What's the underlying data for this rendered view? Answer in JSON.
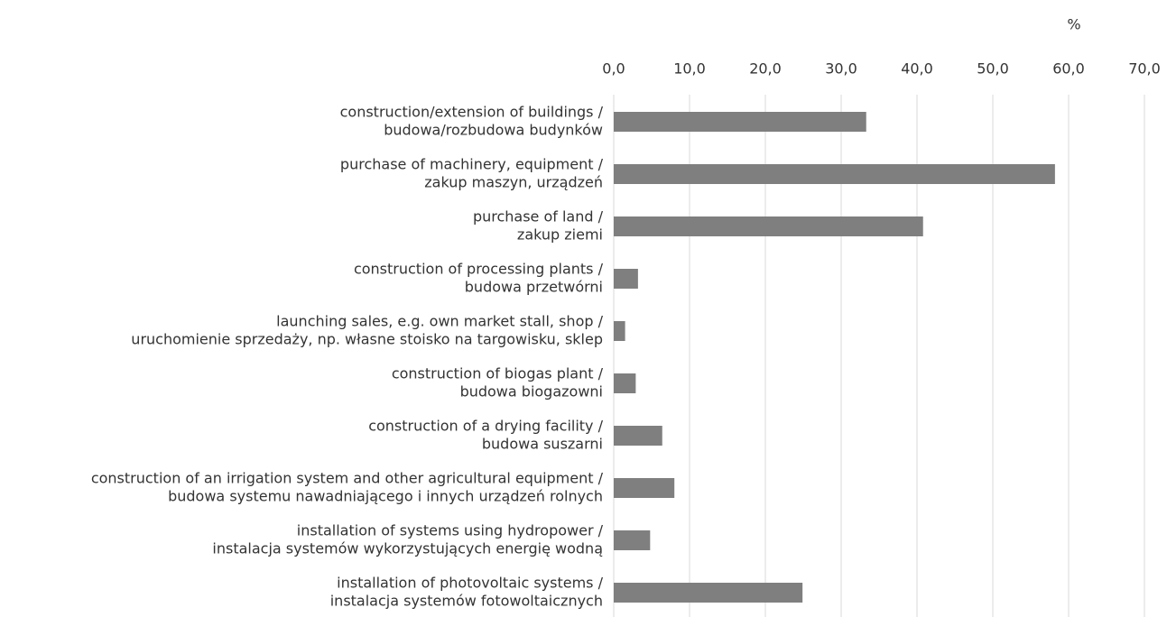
{
  "chart_data": {
    "type": "hbar",
    "unit_label": "%",
    "categories": [
      [
        "construction/extension of buildings /",
        "budowa/rozbudowa budynków"
      ],
      [
        "purchase of machinery, equipment /",
        "zakup maszyn, urządzeń"
      ],
      [
        "purchase of land /",
        "zakup ziemi"
      ],
      [
        "construction of processing plants /",
        "budowa przetwórni"
      ],
      [
        "launching sales, e.g. own market stall, shop /",
        "uruchomienie sprzedaży, np. własne stoisko na targowisku, sklep"
      ],
      [
        "construction of biogas plant /",
        "budowa biogazowni"
      ],
      [
        "construction of a drying facility /",
        "budowa suszarni"
      ],
      [
        "construction of an irrigation system and other agricultural equipment /",
        "budowa systemu nawadniającego i innych urządzeń rolnych"
      ],
      [
        "installation of systems using hydropower /",
        "instalacja systemów wykorzystujących energię wodną"
      ],
      [
        "installation of photovoltaic systems /",
        "instalacja systemów fotowoltaicznych"
      ]
    ],
    "values": [
      33.3,
      58.2,
      40.8,
      3.2,
      1.5,
      2.9,
      6.4,
      8.0,
      4.8,
      24.9
    ],
    "color": "#7f7f7f",
    "xlim": [
      0,
      70
    ],
    "xticks": [
      {
        "value": 0,
        "label": "0,0"
      },
      {
        "value": 10,
        "label": "10,0"
      },
      {
        "value": 20,
        "label": "20,0"
      },
      {
        "value": 30,
        "label": "30,0"
      },
      {
        "value": 40,
        "label": "40,0"
      },
      {
        "value": 50,
        "label": "50,0"
      },
      {
        "value": 60,
        "label": "60,0"
      },
      {
        "value": 70,
        "label": "70,0"
      }
    ],
    "grid": true
  }
}
